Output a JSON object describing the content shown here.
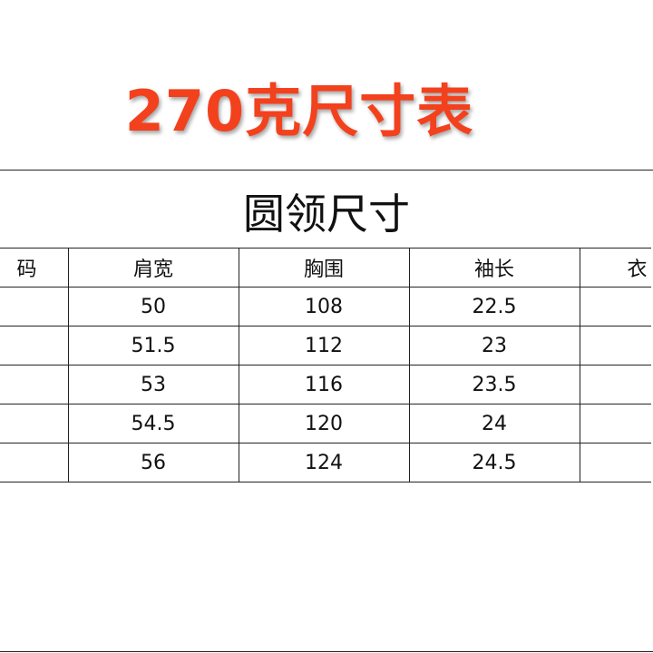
{
  "title": "270克尺寸表",
  "subtitle": "圆领尺寸",
  "table": {
    "headers": [
      "码",
      "肩宽",
      "胸围",
      "袖长",
      "衣"
    ],
    "rows": [
      [
        "",
        "50",
        "108",
        "22.5",
        ""
      ],
      [
        "",
        "51.5",
        "112",
        "23",
        ""
      ],
      [
        "",
        "53",
        "116",
        "23.5",
        ""
      ],
      [
        "",
        "54.5",
        "120",
        "24",
        ""
      ],
      [
        "",
        "56",
        "124",
        "24.5",
        ""
      ]
    ]
  },
  "colors": {
    "title": "#f3411d"
  }
}
